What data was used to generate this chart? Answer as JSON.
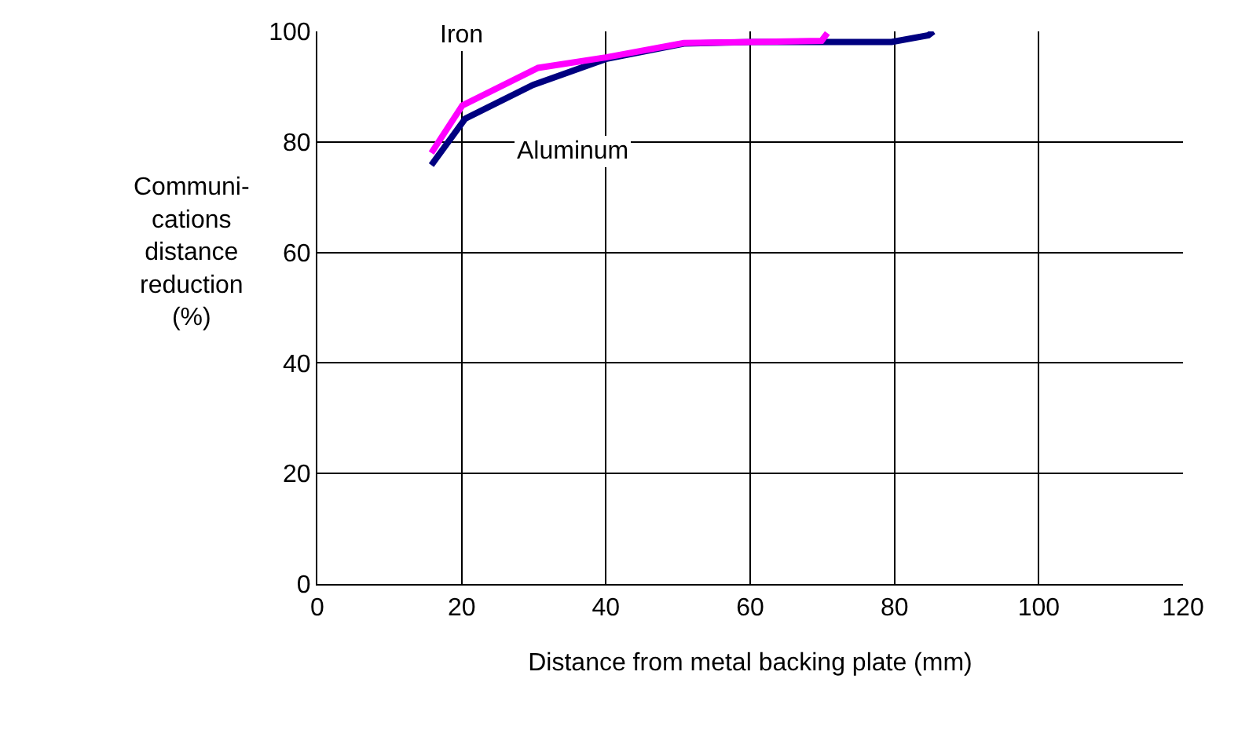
{
  "chart_data": {
    "type": "line",
    "xlabel": "Distance from metal backing plate (mm)",
    "ylabel": "Communi-\ncations\ndistance\nreduction\n(%)",
    "series": [
      {
        "name": "Aluminum",
        "color": "#000080",
        "x": [
          15.8,
          20.5,
          29.9,
          40,
          50.8,
          60.2,
          70.3,
          79.6,
          84.7,
          85.4
        ],
        "values": [
          75.8,
          84.2,
          90.3,
          95,
          97.8,
          98.1,
          98.1,
          98.1,
          99.3,
          100
        ]
      },
      {
        "name": "Iron",
        "color": "#ff00ff",
        "x": [
          15.8,
          20.1,
          30.6,
          40,
          50.8,
          60.2,
          69.9,
          70.7
        ],
        "values": [
          78,
          86.6,
          93.4,
          95.3,
          97.9,
          98.1,
          98.3,
          99.7
        ]
      }
    ],
    "xlim": [
      0,
      120
    ],
    "xticks": [
      0,
      20,
      40,
      60,
      80,
      100,
      120
    ],
    "ylim": [
      0,
      100
    ],
    "yticks": [
      0,
      20,
      40,
      60,
      80,
      100
    ],
    "grid": true,
    "legend": false,
    "marker": "none",
    "line_style": "solid"
  }
}
